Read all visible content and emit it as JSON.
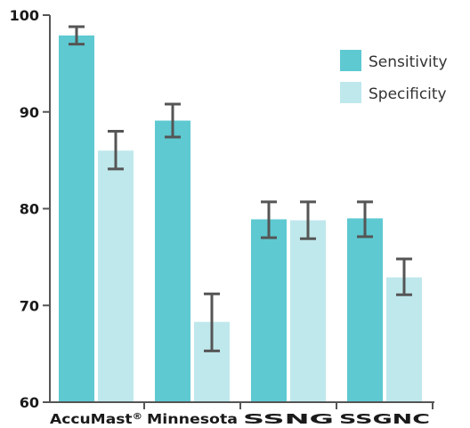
{
  "chart_data": {
    "type": "bar",
    "categories": [
      "AccuMast®",
      "Minnesota",
      "SSNG",
      "SSGNC"
    ],
    "series": [
      {
        "name": "Sensitivity",
        "color": "#5ec9d1",
        "values": [
          97.9,
          89.1,
          78.9,
          79.0
        ],
        "error_low": [
          97.0,
          87.4,
          77.0,
          77.1
        ],
        "error_high": [
          98.8,
          90.8,
          80.7,
          80.7
        ]
      },
      {
        "name": "Specificity",
        "color": "#bfe8ec",
        "values": [
          86.0,
          68.3,
          78.8,
          72.9
        ],
        "error_low": [
          84.1,
          65.3,
          76.9,
          71.1
        ],
        "error_high": [
          88.0,
          71.2,
          80.7,
          74.8
        ]
      }
    ],
    "ylim": [
      60,
      100
    ],
    "yticks": [
      "60",
      "70",
      "80",
      "90",
      "100"
    ],
    "title": "",
    "xlabel": "",
    "ylabel": "",
    "grid": false,
    "legend_position": "top-right"
  }
}
